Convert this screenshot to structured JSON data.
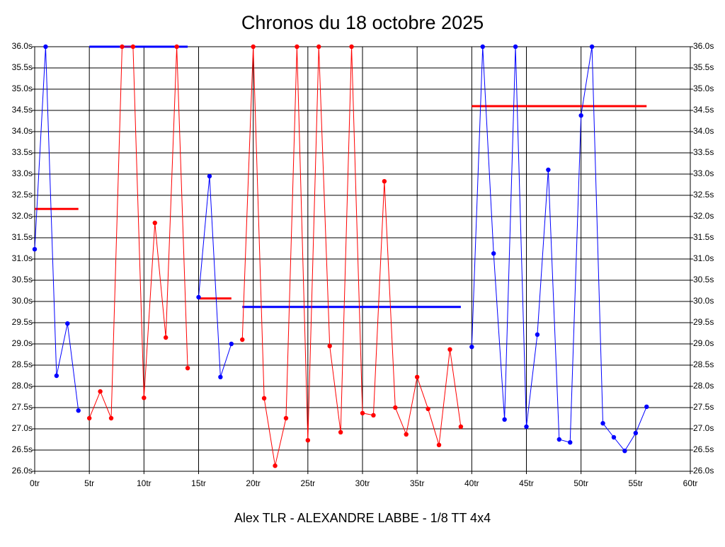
{
  "chart_data": {
    "type": "line",
    "title": "Chronos du 18 octobre 2025",
    "x_label": "Alex TLR - ALEXANDRE LABBE - 1/8 TT 4x4",
    "xlim": [
      0,
      60
    ],
    "ylim": [
      26.0,
      36.0
    ],
    "grid": true,
    "xticks": [
      {
        "value": 0,
        "label": "0tr"
      },
      {
        "value": 5,
        "label": "5tr"
      },
      {
        "value": 10,
        "label": "10tr"
      },
      {
        "value": 15,
        "label": "15tr"
      },
      {
        "value": 20,
        "label": "20tr"
      },
      {
        "value": 25,
        "label": "25tr"
      },
      {
        "value": 30,
        "label": "30tr"
      },
      {
        "value": 35,
        "label": "35tr"
      },
      {
        "value": 40,
        "label": "40tr"
      },
      {
        "value": 45,
        "label": "45tr"
      },
      {
        "value": 50,
        "label": "50tr"
      },
      {
        "value": 55,
        "label": "55tr"
      },
      {
        "value": 60,
        "label": "60tr"
      }
    ],
    "yticks": [
      {
        "value": 26.0,
        "label": "26.0s"
      },
      {
        "value": 26.5,
        "label": "26.5s"
      },
      {
        "value": 27.0,
        "label": "27.0s"
      },
      {
        "value": 27.5,
        "label": "27.5s"
      },
      {
        "value": 28.0,
        "label": "28.0s"
      },
      {
        "value": 28.5,
        "label": "28.5s"
      },
      {
        "value": 29.0,
        "label": "29.0s"
      },
      {
        "value": 29.5,
        "label": "29.5s"
      },
      {
        "value": 30.0,
        "label": "30.0s"
      },
      {
        "value": 30.5,
        "label": "30.5s"
      },
      {
        "value": 31.0,
        "label": "31.0s"
      },
      {
        "value": 31.5,
        "label": "31.5s"
      },
      {
        "value": 32.0,
        "label": "32.0s"
      },
      {
        "value": 32.5,
        "label": "32.5s"
      },
      {
        "value": 33.0,
        "label": "33.0s"
      },
      {
        "value": 33.5,
        "label": "33.5s"
      },
      {
        "value": 34.0,
        "label": "34.0s"
      },
      {
        "value": 34.5,
        "label": "34.5s"
      },
      {
        "value": 35.0,
        "label": "35.0s"
      },
      {
        "value": 35.5,
        "label": "35.5s"
      },
      {
        "value": 36.0,
        "label": "36.0s"
      }
    ],
    "series": [
      {
        "color": "#0000ff",
        "x": [
          0,
          1,
          2,
          3,
          4
        ],
        "values": [
          31.23,
          36.0,
          28.25,
          29.48,
          27.43
        ]
      },
      {
        "color": "#ff0000",
        "x": [
          5,
          6,
          7,
          8,
          9,
          10,
          11,
          12,
          13,
          14
        ],
        "values": [
          27.25,
          27.88,
          27.25,
          36.0,
          36.0,
          27.73,
          31.85,
          29.15,
          36.0,
          28.43
        ]
      },
      {
        "color": "#0000ff",
        "x": [
          15,
          16,
          17,
          18
        ],
        "values": [
          30.1,
          32.95,
          28.22,
          29.0
        ]
      },
      {
        "color": "#ff0000",
        "x": [
          19,
          20,
          21,
          22,
          23,
          24,
          25,
          26,
          27,
          28,
          29,
          30,
          31,
          32,
          33,
          34,
          35,
          36,
          37,
          38,
          39
        ],
        "values": [
          29.1,
          36.0,
          27.72,
          26.13,
          27.25,
          36.0,
          26.73,
          36.0,
          28.95,
          26.92,
          36.0,
          27.37,
          27.32,
          32.83,
          27.5,
          26.87,
          28.22,
          27.47,
          26.62,
          28.87,
          27.05
        ]
      },
      {
        "color": "#0000ff",
        "x": [
          40,
          41,
          42,
          43,
          44,
          45,
          46,
          47,
          48,
          49,
          50,
          51,
          52,
          53,
          54,
          55,
          56
        ],
        "values": [
          28.93,
          36.0,
          31.13,
          27.22,
          36.0,
          27.05,
          29.22,
          33.1,
          26.75,
          26.68,
          34.38,
          36.0,
          27.13,
          26.8,
          26.48,
          26.9,
          27.52
        ]
      }
    ],
    "averages": [
      {
        "color": "#ff0000",
        "x": [
          0,
          4
        ],
        "value": 32.18
      },
      {
        "color": "#0000ff",
        "x": [
          5,
          14
        ],
        "value": 36.0
      },
      {
        "color": "#ff0000",
        "x": [
          15,
          18
        ],
        "value": 30.07
      },
      {
        "color": "#0000ff",
        "x": [
          19,
          39
        ],
        "value": 29.87
      },
      {
        "color": "#ff0000",
        "x": [
          40,
          56
        ],
        "value": 34.6
      }
    ]
  }
}
